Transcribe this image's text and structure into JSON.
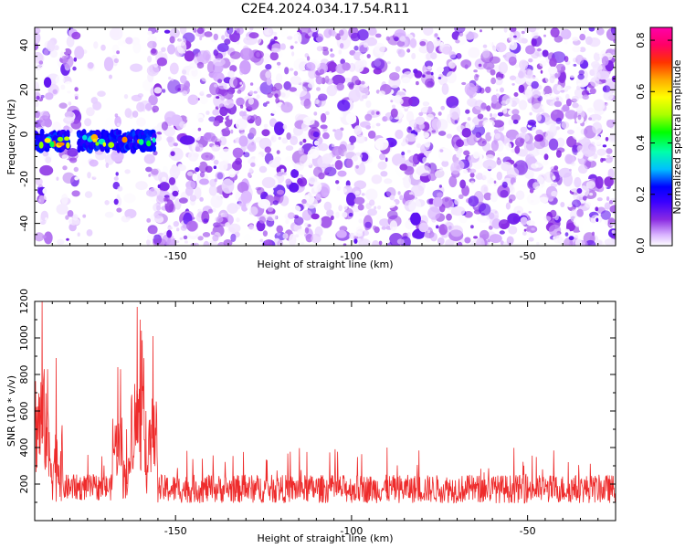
{
  "title": "C2E4.2024.034.17.54.R11",
  "chart_data": [
    {
      "type": "heatmap",
      "description_axis": "spectrogram",
      "xlabel": "Height of straight line (km)",
      "ylabel": "Frequency (Hz)",
      "xlim": [
        -190,
        -25
      ],
      "ylim": [
        -50,
        48
      ],
      "xticks": [
        -150,
        -100,
        -50
      ],
      "yticks": [
        -40,
        -20,
        0,
        20,
        40
      ],
      "colorbar": {
        "label": "Normalized spectral amplitude",
        "range": [
          0,
          0.85
        ],
        "ticks": [
          0.0,
          0.2,
          0.4,
          0.6,
          0.8
        ],
        "colormap": [
          "#ffffff",
          "#d9b3ff",
          "#8a2be2",
          "#3a00ff",
          "#0000ff",
          "#00bfff",
          "#00ffaa",
          "#00ff00",
          "#aaff00",
          "#ffff00",
          "#ffaa00",
          "#ff3300",
          "#ff0066",
          "#ff00aa"
        ]
      },
      "carrier_band": {
        "x_range": [
          -190,
          -156
        ],
        "frequency_hz": -3,
        "halfwidth_hz": 4,
        "gaps_km": [
          [
            -180.5,
            -177.5
          ]
        ]
      },
      "sparse_columns_km": [
        [
          -186,
          -182
        ],
        [
          -178,
          -167
        ],
        [
          -166,
          -158
        ]
      ]
    },
    {
      "type": "line",
      "xlabel": "Height of straight line (km)",
      "ylabel": "SNR (10 * v/v)",
      "xlim": [
        -190,
        -25
      ],
      "ylim": [
        0,
        1200
      ],
      "xticks": [
        -150,
        -100,
        -50
      ],
      "yticks": [
        200,
        400,
        600,
        800,
        1000,
        1200
      ],
      "color": "#ee2b2b",
      "segments": [
        {
          "x": [
            -190,
            -186
          ],
          "base": 450,
          "amp": 500,
          "peak": 1200
        },
        {
          "x": [
            -186,
            -182
          ],
          "base": 250,
          "amp": 350,
          "peak": 890
        },
        {
          "x": [
            -182,
            -168
          ],
          "base": 160,
          "amp": 120,
          "peak": 360
        },
        {
          "x": [
            -168,
            -165
          ],
          "base": 350,
          "amp": 300,
          "peak": 840
        },
        {
          "x": [
            -165,
            -163
          ],
          "base": 200,
          "amp": 200,
          "peak": 500
        },
        {
          "x": [
            -163,
            -159
          ],
          "base": 450,
          "amp": 450,
          "peak": 1170
        },
        {
          "x": [
            -159,
            -158
          ],
          "base": 250,
          "amp": 250,
          "peak": 600
        },
        {
          "x": [
            -158,
            -155
          ],
          "base": 400,
          "amp": 350,
          "peak": 1010
        },
        {
          "x": [
            -155,
            -25
          ],
          "base": 150,
          "amp": 130,
          "peak": 400
        }
      ]
    }
  ]
}
